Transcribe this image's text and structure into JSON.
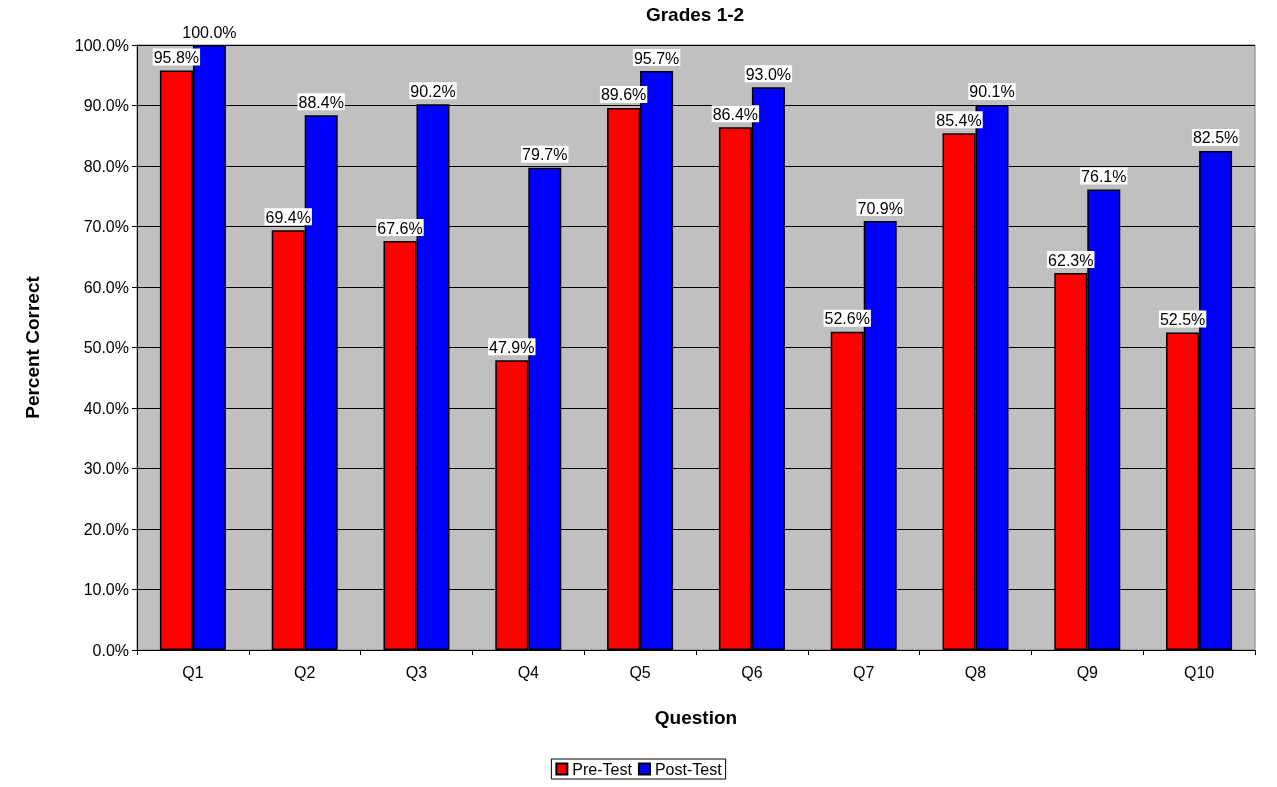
{
  "chart_data": {
    "type": "bar",
    "title": "Grades 1-2",
    "xlabel": "Question",
    "ylabel": "Percent Correct",
    "categories": [
      "Q1",
      "Q2",
      "Q3",
      "Q4",
      "Q5",
      "Q6",
      "Q7",
      "Q8",
      "Q9",
      "Q10"
    ],
    "series": [
      {
        "name": "Pre-Test",
        "color": "#ff0000",
        "values": [
          95.8,
          69.4,
          67.6,
          47.9,
          89.6,
          86.4,
          52.6,
          85.4,
          62.3,
          52.5
        ],
        "value_labels": [
          "95.8%",
          "69.4%",
          "67.6%",
          "47.9%",
          "89.6%",
          "86.4%",
          "52.6%",
          "85.4%",
          "62.3%",
          "52.5%"
        ]
      },
      {
        "name": "Post-Test",
        "color": "#0000ff",
        "values": [
          100.0,
          88.4,
          90.2,
          79.7,
          95.7,
          93.0,
          70.9,
          90.1,
          76.1,
          82.5
        ],
        "value_labels": [
          "100.0%",
          "88.4%",
          "90.2%",
          "79.7%",
          "95.7%",
          "93.0%",
          "70.9%",
          "90.1%",
          "76.1%",
          "82.5%"
        ]
      }
    ],
    "ylim": [
      0,
      100
    ],
    "yticks": [
      {
        "value": 0,
        "label": "0.0%"
      },
      {
        "value": 10,
        "label": "10.0%"
      },
      {
        "value": 20,
        "label": "20.0%"
      },
      {
        "value": 30,
        "label": "30.0%"
      },
      {
        "value": 40,
        "label": "40.0%"
      },
      {
        "value": 50,
        "label": "50.0%"
      },
      {
        "value": 60,
        "label": "60.0%"
      },
      {
        "value": 70,
        "label": "70.0%"
      },
      {
        "value": 80,
        "label": "80.0%"
      },
      {
        "value": 90,
        "label": "90.0%"
      },
      {
        "value": 100,
        "label": "100.0%"
      }
    ],
    "grid": "y",
    "legend": "bottom"
  }
}
